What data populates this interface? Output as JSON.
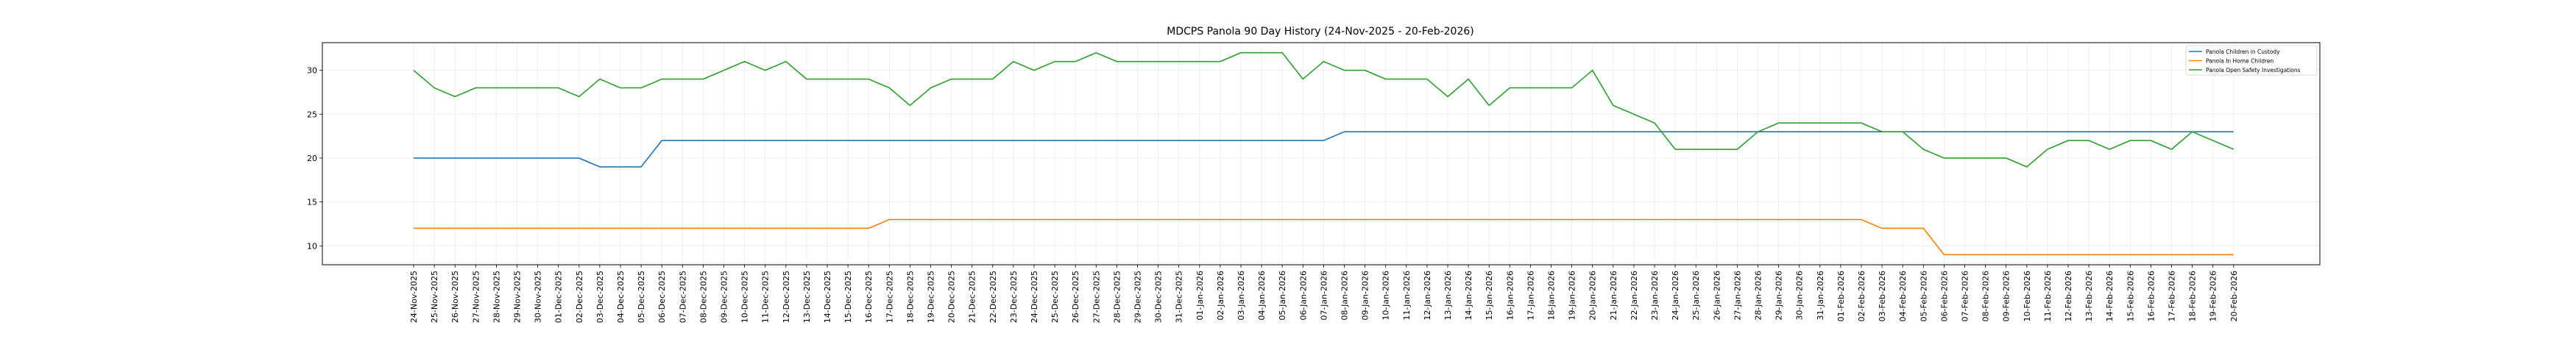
{
  "chart_data": {
    "type": "line",
    "title": "MDCPS Panola 90 Day History (24-Nov-2025 - 20-Feb-2026)",
    "xlabel": "",
    "ylabel": "",
    "ylim": [
      7.85,
      33.15
    ],
    "yticks": [
      10,
      15,
      20,
      25,
      30
    ],
    "grid": true,
    "legend_position": "top-right",
    "x": [
      "24-Nov-2025",
      "25-Nov-2025",
      "26-Nov-2025",
      "27-Nov-2025",
      "28-Nov-2025",
      "29-Nov-2025",
      "30-Nov-2025",
      "01-Dec-2025",
      "02-Dec-2025",
      "03-Dec-2025",
      "04-Dec-2025",
      "05-Dec-2025",
      "06-Dec-2025",
      "07-Dec-2025",
      "08-Dec-2025",
      "09-Dec-2025",
      "10-Dec-2025",
      "11-Dec-2025",
      "12-Dec-2025",
      "13-Dec-2025",
      "14-Dec-2025",
      "15-Dec-2025",
      "16-Dec-2025",
      "17-Dec-2025",
      "18-Dec-2025",
      "19-Dec-2025",
      "20-Dec-2025",
      "21-Dec-2025",
      "22-Dec-2025",
      "23-Dec-2025",
      "24-Dec-2025",
      "25-Dec-2025",
      "26-Dec-2025",
      "27-Dec-2025",
      "28-Dec-2025",
      "29-Dec-2025",
      "30-Dec-2025",
      "31-Dec-2025",
      "01-Jan-2026",
      "02-Jan-2026",
      "03-Jan-2026",
      "04-Jan-2026",
      "05-Jan-2026",
      "06-Jan-2026",
      "07-Jan-2026",
      "08-Jan-2026",
      "09-Jan-2026",
      "10-Jan-2026",
      "11-Jan-2026",
      "12-Jan-2026",
      "13-Jan-2026",
      "14-Jan-2026",
      "15-Jan-2026",
      "16-Jan-2026",
      "17-Jan-2026",
      "18-Jan-2026",
      "19-Jan-2026",
      "20-Jan-2026",
      "21-Jan-2026",
      "22-Jan-2026",
      "23-Jan-2026",
      "24-Jan-2026",
      "25-Jan-2026",
      "26-Jan-2026",
      "27-Jan-2026",
      "28-Jan-2026",
      "29-Jan-2026",
      "30-Jan-2026",
      "31-Jan-2026",
      "01-Feb-2026",
      "02-Feb-2026",
      "03-Feb-2026",
      "04-Feb-2026",
      "05-Feb-2026",
      "06-Feb-2026",
      "07-Feb-2026",
      "08-Feb-2026",
      "09-Feb-2026",
      "10-Feb-2026",
      "11-Feb-2026",
      "12-Feb-2026",
      "13-Feb-2026",
      "14-Feb-2026",
      "15-Feb-2026",
      "16-Feb-2026",
      "17-Feb-2026",
      "18-Feb-2026",
      "19-Feb-2026",
      "20-Feb-2026"
    ],
    "series": [
      {
        "name": "Panola Children in Custody",
        "color": "#1f77b4",
        "values": [
          20,
          20,
          20,
          20,
          20,
          20,
          20,
          20,
          20,
          19,
          19,
          19,
          22,
          22,
          22,
          22,
          22,
          22,
          22,
          22,
          22,
          22,
          22,
          22,
          22,
          22,
          22,
          22,
          22,
          22,
          22,
          22,
          22,
          22,
          22,
          22,
          22,
          22,
          22,
          22,
          22,
          22,
          22,
          22,
          22,
          23,
          23,
          23,
          23,
          23,
          23,
          23,
          23,
          23,
          23,
          23,
          23,
          23,
          23,
          23,
          23,
          23,
          23,
          23,
          23,
          23,
          23,
          23,
          23,
          23,
          23,
          23,
          23,
          23,
          23,
          23,
          23,
          23,
          23,
          23,
          23,
          23,
          23,
          23,
          23,
          23,
          23,
          23,
          23
        ]
      },
      {
        "name": "Panola In Home Children",
        "color": "#ff7f0e",
        "values": [
          12,
          12,
          12,
          12,
          12,
          12,
          12,
          12,
          12,
          12,
          12,
          12,
          12,
          12,
          12,
          12,
          12,
          12,
          12,
          12,
          12,
          12,
          12,
          13,
          13,
          13,
          13,
          13,
          13,
          13,
          13,
          13,
          13,
          13,
          13,
          13,
          13,
          13,
          13,
          13,
          13,
          13,
          13,
          13,
          13,
          13,
          13,
          13,
          13,
          13,
          13,
          13,
          13,
          13,
          13,
          13,
          13,
          13,
          13,
          13,
          13,
          13,
          13,
          13,
          13,
          13,
          13,
          13,
          13,
          13,
          13,
          12,
          12,
          12,
          9,
          9,
          9,
          9,
          9,
          9,
          9,
          9,
          9,
          9,
          9,
          9,
          9,
          9,
          9
        ]
      },
      {
        "name": "Panola Open Safety Investigations",
        "color": "#2ca02c",
        "values": [
          30,
          28,
          27,
          28,
          28,
          28,
          28,
          28,
          27,
          29,
          28,
          28,
          29,
          29,
          29,
          30,
          31,
          30,
          31,
          29,
          29,
          29,
          29,
          28,
          26,
          28,
          29,
          29,
          29,
          31,
          30,
          31,
          31,
          32,
          31,
          31,
          31,
          31,
          31,
          31,
          32,
          32,
          32,
          29,
          31,
          30,
          30,
          29,
          29,
          29,
          27,
          29,
          26,
          28,
          28,
          28,
          28,
          30,
          26,
          25,
          24,
          21,
          21,
          21,
          21,
          23,
          24,
          24,
          24,
          24,
          24,
          23,
          23,
          21,
          20,
          20,
          20,
          20,
          19,
          21,
          22,
          22,
          21,
          22,
          22,
          21,
          23,
          22,
          21
        ]
      }
    ]
  }
}
